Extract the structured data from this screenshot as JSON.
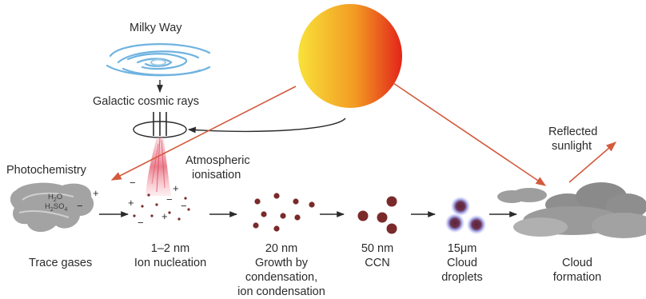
{
  "labels": {
    "milky_way": "Milky Way",
    "cosmic_rays": "Galactic cosmic rays",
    "photochemistry": "Photochemistry",
    "atmospheric_ionisation": [
      "Atmospheric",
      "ionisation"
    ],
    "reflected_sunlight": [
      "Reflected",
      "sunlight"
    ],
    "h2o": "H",
    "h2o_sub": "2",
    "h2o_tail": "O",
    "h2so4": "H",
    "h2so4_sub1": "2",
    "h2so4_mid": "SO",
    "h2so4_sub2": "4"
  },
  "stages": [
    {
      "name": "trace-gases",
      "lines": [
        "Trace gases"
      ]
    },
    {
      "name": "ion-nucleation",
      "lines": [
        "1–2 nm",
        "Ion nucleation"
      ]
    },
    {
      "name": "growth",
      "lines": [
        "20 nm",
        "Growth by",
        "condensation,",
        "ion condensation"
      ]
    },
    {
      "name": "ccn",
      "lines": [
        "50 nm",
        "CCN"
      ]
    },
    {
      "name": "cloud-droplets",
      "lines": [
        "15μm",
        "Cloud",
        "droplets"
      ]
    },
    {
      "name": "cloud-formation",
      "lines": [
        "Cloud",
        "formation"
      ]
    }
  ],
  "colors": {
    "sun_inner": "#f9e23a",
    "sun_outer": "#e2241a",
    "galaxy": "#6fb3e0",
    "arrow_red": "#d35a3c",
    "particle": "#7a2a2a",
    "droplet_halo": "#8d8fd6",
    "cloud_gray": "#8e8e8e",
    "trace_gas": "#9a9a9a",
    "ion_track": "#e76a7a"
  }
}
